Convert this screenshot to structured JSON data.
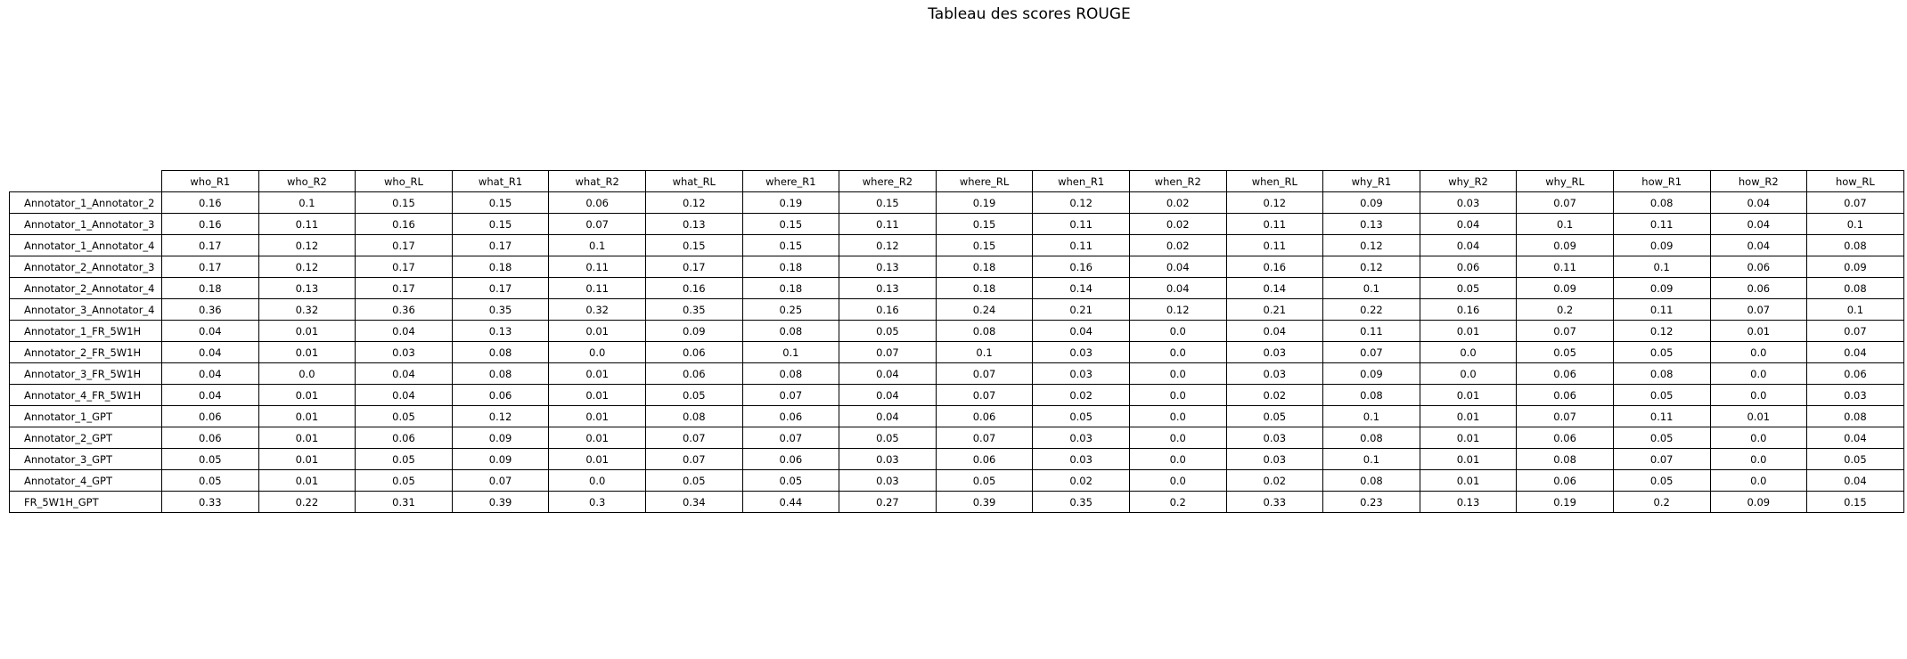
{
  "chart_data": {
    "type": "table",
    "title": "Tableau des scores ROUGE",
    "columns": [
      "who_R1",
      "who_R2",
      "who_RL",
      "what_R1",
      "what_R2",
      "what_RL",
      "where_R1",
      "where_R2",
      "where_RL",
      "when_R1",
      "when_R2",
      "when_RL",
      "why_R1",
      "why_R2",
      "why_RL",
      "how_R1",
      "how_R2",
      "how_RL"
    ],
    "rows": [
      {
        "label": "Annotator_1_Annotator_2",
        "values": [
          "0.16",
          "0.1",
          "0.15",
          "0.15",
          "0.06",
          "0.12",
          "0.19",
          "0.15",
          "0.19",
          "0.12",
          "0.02",
          "0.12",
          "0.09",
          "0.03",
          "0.07",
          "0.08",
          "0.04",
          "0.07"
        ]
      },
      {
        "label": "Annotator_1_Annotator_3",
        "values": [
          "0.16",
          "0.11",
          "0.16",
          "0.15",
          "0.07",
          "0.13",
          "0.15",
          "0.11",
          "0.15",
          "0.11",
          "0.02",
          "0.11",
          "0.13",
          "0.04",
          "0.1",
          "0.11",
          "0.04",
          "0.1"
        ]
      },
      {
        "label": "Annotator_1_Annotator_4",
        "values": [
          "0.17",
          "0.12",
          "0.17",
          "0.17",
          "0.1",
          "0.15",
          "0.15",
          "0.12",
          "0.15",
          "0.11",
          "0.02",
          "0.11",
          "0.12",
          "0.04",
          "0.09",
          "0.09",
          "0.04",
          "0.08"
        ]
      },
      {
        "label": "Annotator_2_Annotator_3",
        "values": [
          "0.17",
          "0.12",
          "0.17",
          "0.18",
          "0.11",
          "0.17",
          "0.18",
          "0.13",
          "0.18",
          "0.16",
          "0.04",
          "0.16",
          "0.12",
          "0.06",
          "0.11",
          "0.1",
          "0.06",
          "0.09"
        ]
      },
      {
        "label": "Annotator_2_Annotator_4",
        "values": [
          "0.18",
          "0.13",
          "0.17",
          "0.17",
          "0.11",
          "0.16",
          "0.18",
          "0.13",
          "0.18",
          "0.14",
          "0.04",
          "0.14",
          "0.1",
          "0.05",
          "0.09",
          "0.09",
          "0.06",
          "0.08"
        ]
      },
      {
        "label": "Annotator_3_Annotator_4",
        "values": [
          "0.36",
          "0.32",
          "0.36",
          "0.35",
          "0.32",
          "0.35",
          "0.25",
          "0.16",
          "0.24",
          "0.21",
          "0.12",
          "0.21",
          "0.22",
          "0.16",
          "0.2",
          "0.11",
          "0.07",
          "0.1"
        ]
      },
      {
        "label": "Annotator_1_FR_5W1H",
        "values": [
          "0.04",
          "0.01",
          "0.04",
          "0.13",
          "0.01",
          "0.09",
          "0.08",
          "0.05",
          "0.08",
          "0.04",
          "0.0",
          "0.04",
          "0.11",
          "0.01",
          "0.07",
          "0.12",
          "0.01",
          "0.07"
        ]
      },
      {
        "label": "Annotator_2_FR_5W1H",
        "values": [
          "0.04",
          "0.01",
          "0.03",
          "0.08",
          "0.0",
          "0.06",
          "0.1",
          "0.07",
          "0.1",
          "0.03",
          "0.0",
          "0.03",
          "0.07",
          "0.0",
          "0.05",
          "0.05",
          "0.0",
          "0.04"
        ]
      },
      {
        "label": "Annotator_3_FR_5W1H",
        "values": [
          "0.04",
          "0.0",
          "0.04",
          "0.08",
          "0.01",
          "0.06",
          "0.08",
          "0.04",
          "0.07",
          "0.03",
          "0.0",
          "0.03",
          "0.09",
          "0.0",
          "0.06",
          "0.08",
          "0.0",
          "0.06"
        ]
      },
      {
        "label": "Annotator_4_FR_5W1H",
        "values": [
          "0.04",
          "0.01",
          "0.04",
          "0.06",
          "0.01",
          "0.05",
          "0.07",
          "0.04",
          "0.07",
          "0.02",
          "0.0",
          "0.02",
          "0.08",
          "0.01",
          "0.06",
          "0.05",
          "0.0",
          "0.03"
        ]
      },
      {
        "label": "Annotator_1_GPT",
        "values": [
          "0.06",
          "0.01",
          "0.05",
          "0.12",
          "0.01",
          "0.08",
          "0.06",
          "0.04",
          "0.06",
          "0.05",
          "0.0",
          "0.05",
          "0.1",
          "0.01",
          "0.07",
          "0.11",
          "0.01",
          "0.08"
        ]
      },
      {
        "label": "Annotator_2_GPT",
        "values": [
          "0.06",
          "0.01",
          "0.06",
          "0.09",
          "0.01",
          "0.07",
          "0.07",
          "0.05",
          "0.07",
          "0.03",
          "0.0",
          "0.03",
          "0.08",
          "0.01",
          "0.06",
          "0.05",
          "0.0",
          "0.04"
        ]
      },
      {
        "label": "Annotator_3_GPT",
        "values": [
          "0.05",
          "0.01",
          "0.05",
          "0.09",
          "0.01",
          "0.07",
          "0.06",
          "0.03",
          "0.06",
          "0.03",
          "0.0",
          "0.03",
          "0.1",
          "0.01",
          "0.08",
          "0.07",
          "0.0",
          "0.05"
        ]
      },
      {
        "label": "Annotator_4_GPT",
        "values": [
          "0.05",
          "0.01",
          "0.05",
          "0.07",
          "0.0",
          "0.05",
          "0.05",
          "0.03",
          "0.05",
          "0.02",
          "0.0",
          "0.02",
          "0.08",
          "0.01",
          "0.06",
          "0.05",
          "0.0",
          "0.04"
        ]
      },
      {
        "label": "FR_5W1H_GPT",
        "values": [
          "0.33",
          "0.22",
          "0.31",
          "0.39",
          "0.3",
          "0.34",
          "0.44",
          "0.27",
          "0.39",
          "0.35",
          "0.2",
          "0.33",
          "0.23",
          "0.13",
          "0.19",
          "0.2",
          "0.09",
          "0.15"
        ]
      }
    ]
  }
}
